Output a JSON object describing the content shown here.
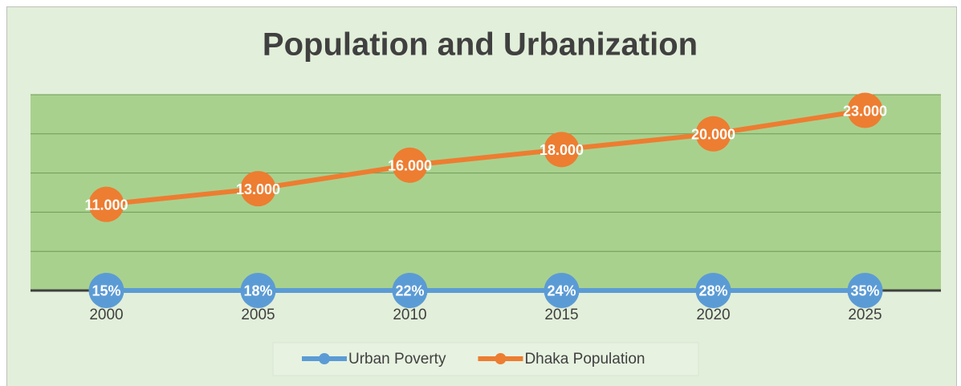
{
  "chart_data": {
    "type": "line",
    "title": "Population and Urbanization",
    "categories": [
      "2000",
      "2005",
      "2010",
      "2015",
      "2020",
      "2025"
    ],
    "series": [
      {
        "name": "Urban Poverty",
        "color": "#5b9bd5",
        "values": [
          0.15,
          0.18,
          0.22,
          0.24,
          0.28,
          0.35
        ],
        "value_labels": [
          "15%",
          "18%",
          "22%",
          "24%",
          "28%",
          "35%"
        ]
      },
      {
        "name": "Dhaka Population",
        "color": "#ed7d31",
        "values": [
          11000,
          13000,
          16000,
          18000,
          20000,
          23000
        ],
        "value_labels": [
          "11.000",
          "13.000",
          "16.000",
          "18.000",
          "20.000",
          "23.000"
        ]
      }
    ],
    "ylim": [
      0,
      25000
    ],
    "yticks": [
      0,
      5000,
      10000,
      15000,
      20000,
      25000
    ],
    "grid": true,
    "legend": "bottom"
  }
}
